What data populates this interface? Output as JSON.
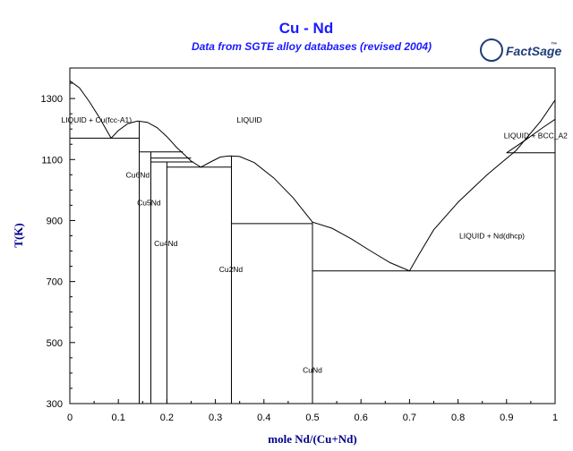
{
  "chart_data": {
    "type": "phase-diagram",
    "title": "Cu - Nd",
    "subtitle": "Data from SGTE alloy databases (revised 2004)",
    "xlabel": "mole Nd/(Cu+Nd)",
    "ylabel": "T(K)",
    "xlim": [
      0,
      1
    ],
    "ylim": [
      300,
      1400
    ],
    "x_ticks": [
      0,
      0.1,
      0.2,
      0.3,
      0.4,
      0.5,
      0.6,
      0.7,
      0.8,
      0.9,
      1
    ],
    "x_tick_labels": [
      "0",
      "0.1",
      "0.2",
      "0.3",
      "0.4",
      "0.5",
      "0.6",
      "0.7",
      "0.8",
      "0.9",
      "1"
    ],
    "y_ticks": [
      300,
      500,
      700,
      900,
      1100,
      1300
    ],
    "y_tick_labels": [
      "300",
      "500",
      "700",
      "900",
      "1100",
      "1300"
    ],
    "line_color": "#000000",
    "liquidus": [
      [
        0,
        1358
      ],
      [
        0.02,
        1335
      ],
      [
        0.04,
        1290
      ],
      [
        0.06,
        1240
      ],
      [
        0.085,
        1170
      ],
      [
        0.1,
        1195
      ],
      [
        0.12,
        1218
      ],
      [
        0.14,
        1226
      ],
      [
        0.16,
        1222
      ],
      [
        0.18,
        1204
      ],
      [
        0.2,
        1175
      ],
      [
        0.22,
        1140
      ],
      [
        0.25,
        1095
      ],
      [
        0.27,
        1075
      ],
      [
        0.29,
        1092
      ],
      [
        0.31,
        1108
      ],
      [
        0.33,
        1112
      ],
      [
        0.35,
        1110
      ],
      [
        0.38,
        1090
      ],
      [
        0.42,
        1040
      ],
      [
        0.46,
        975
      ],
      [
        0.5,
        895
      ],
      [
        0.54,
        875
      ],
      [
        0.58,
        840
      ],
      [
        0.62,
        800
      ],
      [
        0.66,
        762
      ],
      [
        0.7,
        735
      ],
      [
        0.72,
        790
      ],
      [
        0.75,
        870
      ],
      [
        0.8,
        960
      ],
      [
        0.86,
        1050
      ],
      [
        0.92,
        1130
      ],
      [
        0.97,
        1225
      ],
      [
        1,
        1295
      ]
    ],
    "solvus_right": [
      [
        0.9,
        1122
      ],
      [
        0.94,
        1165
      ],
      [
        0.975,
        1205
      ],
      [
        1,
        1232
      ]
    ],
    "horizontal_lines": [
      {
        "x": [
          0,
          0.143
        ],
        "y": 1170
      },
      {
        "x": [
          0.143,
          0.233
        ],
        "y": 1125
      },
      {
        "x": [
          0.167,
          0.25
        ],
        "y": 1105
      },
      {
        "x": [
          0.167,
          0.255
        ],
        "y": 1092
      },
      {
        "x": [
          0.2,
          0.333
        ],
        "y": 1075
      },
      {
        "x": [
          0.333,
          0.5
        ],
        "y": 890
      },
      {
        "x": [
          0.5,
          1
        ],
        "y": 735
      },
      {
        "x": [
          0.9,
          1
        ],
        "y": 1122
      }
    ],
    "vertical_lines": [
      {
        "x": 0.143,
        "y": [
          300,
          1226
        ]
      },
      {
        "x": 0.167,
        "y": [
          300,
          1125
        ]
      },
      {
        "x": 0.2,
        "y": [
          300,
          1092
        ]
      },
      {
        "x": 0.333,
        "y": [
          300,
          1112
        ]
      },
      {
        "x": 0.5,
        "y": [
          300,
          895
        ]
      },
      {
        "x": 1,
        "y": [
          1122,
          1232
        ]
      }
    ],
    "region_labels": [
      {
        "text": "LIQUID + Cu(fcc-A1)",
        "x": 0.055,
        "y": 1230
      },
      {
        "text": "LIQUID",
        "x": 0.37,
        "y": 1230
      },
      {
        "text": "LIQUID + BCC_A2",
        "x": 0.96,
        "y": 1178
      },
      {
        "text": "Cu6Nd",
        "x": 0.14,
        "y": 1050
      },
      {
        "text": "Cu5Nd",
        "x": 0.163,
        "y": 958
      },
      {
        "text": "Cu4Nd",
        "x": 0.198,
        "y": 825
      },
      {
        "text": "Cu2Nd",
        "x": 0.332,
        "y": 740
      },
      {
        "text": "LIQUID + Nd(dhcp)",
        "x": 0.87,
        "y": 850
      },
      {
        "text": "CuNd",
        "x": 0.5,
        "y": 410
      }
    ]
  },
  "logo": {
    "text": "FactSage",
    "trademark": "™"
  }
}
